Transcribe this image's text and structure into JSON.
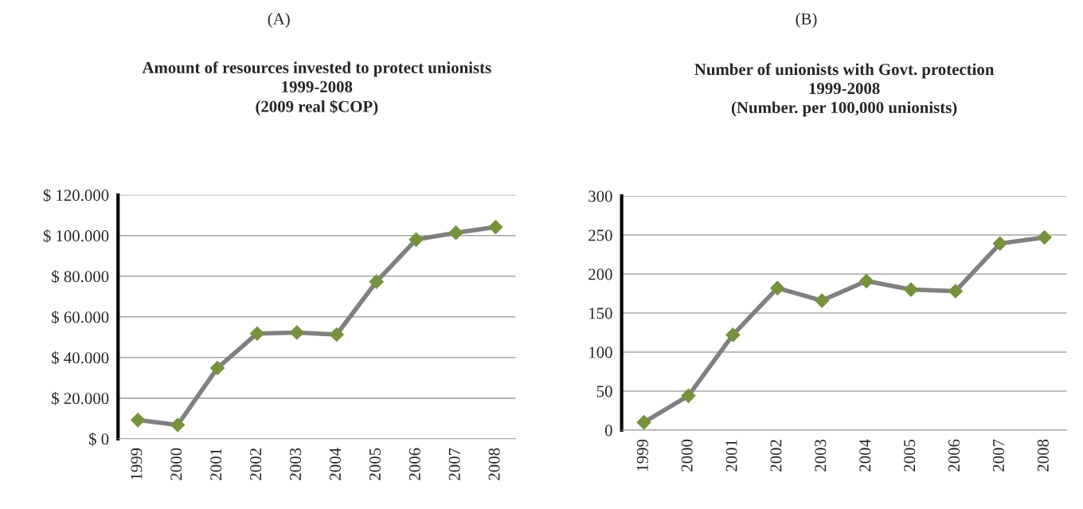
{
  "chart_data": [
    {
      "type": "line",
      "title": "Amount of resources invested to protect unionists\n1999-2008\n(2009 real $COP)",
      "annotations": [
        "(A)"
      ],
      "categories": [
        "1999",
        "2000",
        "2001",
        "2002",
        "2003",
        "2004",
        "2005",
        "2006",
        "2007",
        "2008"
      ],
      "series": [
        {
          "color": "#808080",
          "colors": [
            "#76923c",
            "#76923c",
            "#76923c",
            "#76923c",
            "#76923c",
            "#76923c",
            "#76923c",
            "#76923c",
            "#76923c",
            "#76923c"
          ],
          "values": [
            9200,
            6800,
            34800,
            51800,
            52300,
            51300,
            77300,
            98000,
            101400,
            104200
          ]
        }
      ],
      "ylim": [
        0,
        120000
      ],
      "yticks": [
        {
          "value": 0,
          "label": "$ 0"
        },
        {
          "value": 20000,
          "label": "$ 20.000"
        },
        {
          "value": 40000,
          "label": "$ 40.000"
        },
        {
          "value": 60000,
          "label": "$ 60.000"
        },
        {
          "value": 80000,
          "label": "$ 80.000"
        },
        {
          "value": 100000,
          "label": "$ 100.000"
        },
        {
          "value": 120000,
          "label": "$ 120.000"
        }
      ],
      "grid": "y",
      "marker": "diamond",
      "line_style": "solid"
    },
    {
      "type": "line",
      "title": "Number of unionists with Govt. protection\n1999-2008\n(Number. per 100,000 unionists)",
      "annotations": [
        "(B)"
      ],
      "categories": [
        "1999",
        "2000",
        "2001",
        "2002",
        "2003",
        "2004",
        "2005",
        "2006",
        "2007",
        "2008"
      ],
      "series": [
        {
          "color": "#808080",
          "colors": [
            "#76923c",
            "#76923c",
            "#76923c",
            "#76923c",
            "#76923c",
            "#76923c",
            "#76923c",
            "#76923c",
            "#76923c",
            "#76923c"
          ],
          "values": [
            10,
            44,
            122,
            182,
            166,
            191,
            180,
            178,
            239,
            247
          ]
        }
      ],
      "ylim": [
        0,
        300
      ],
      "yticks": [
        0,
        50,
        100,
        150,
        200,
        250,
        300
      ],
      "grid": "y",
      "marker": "diamond",
      "line_style": "solid"
    }
  ]
}
